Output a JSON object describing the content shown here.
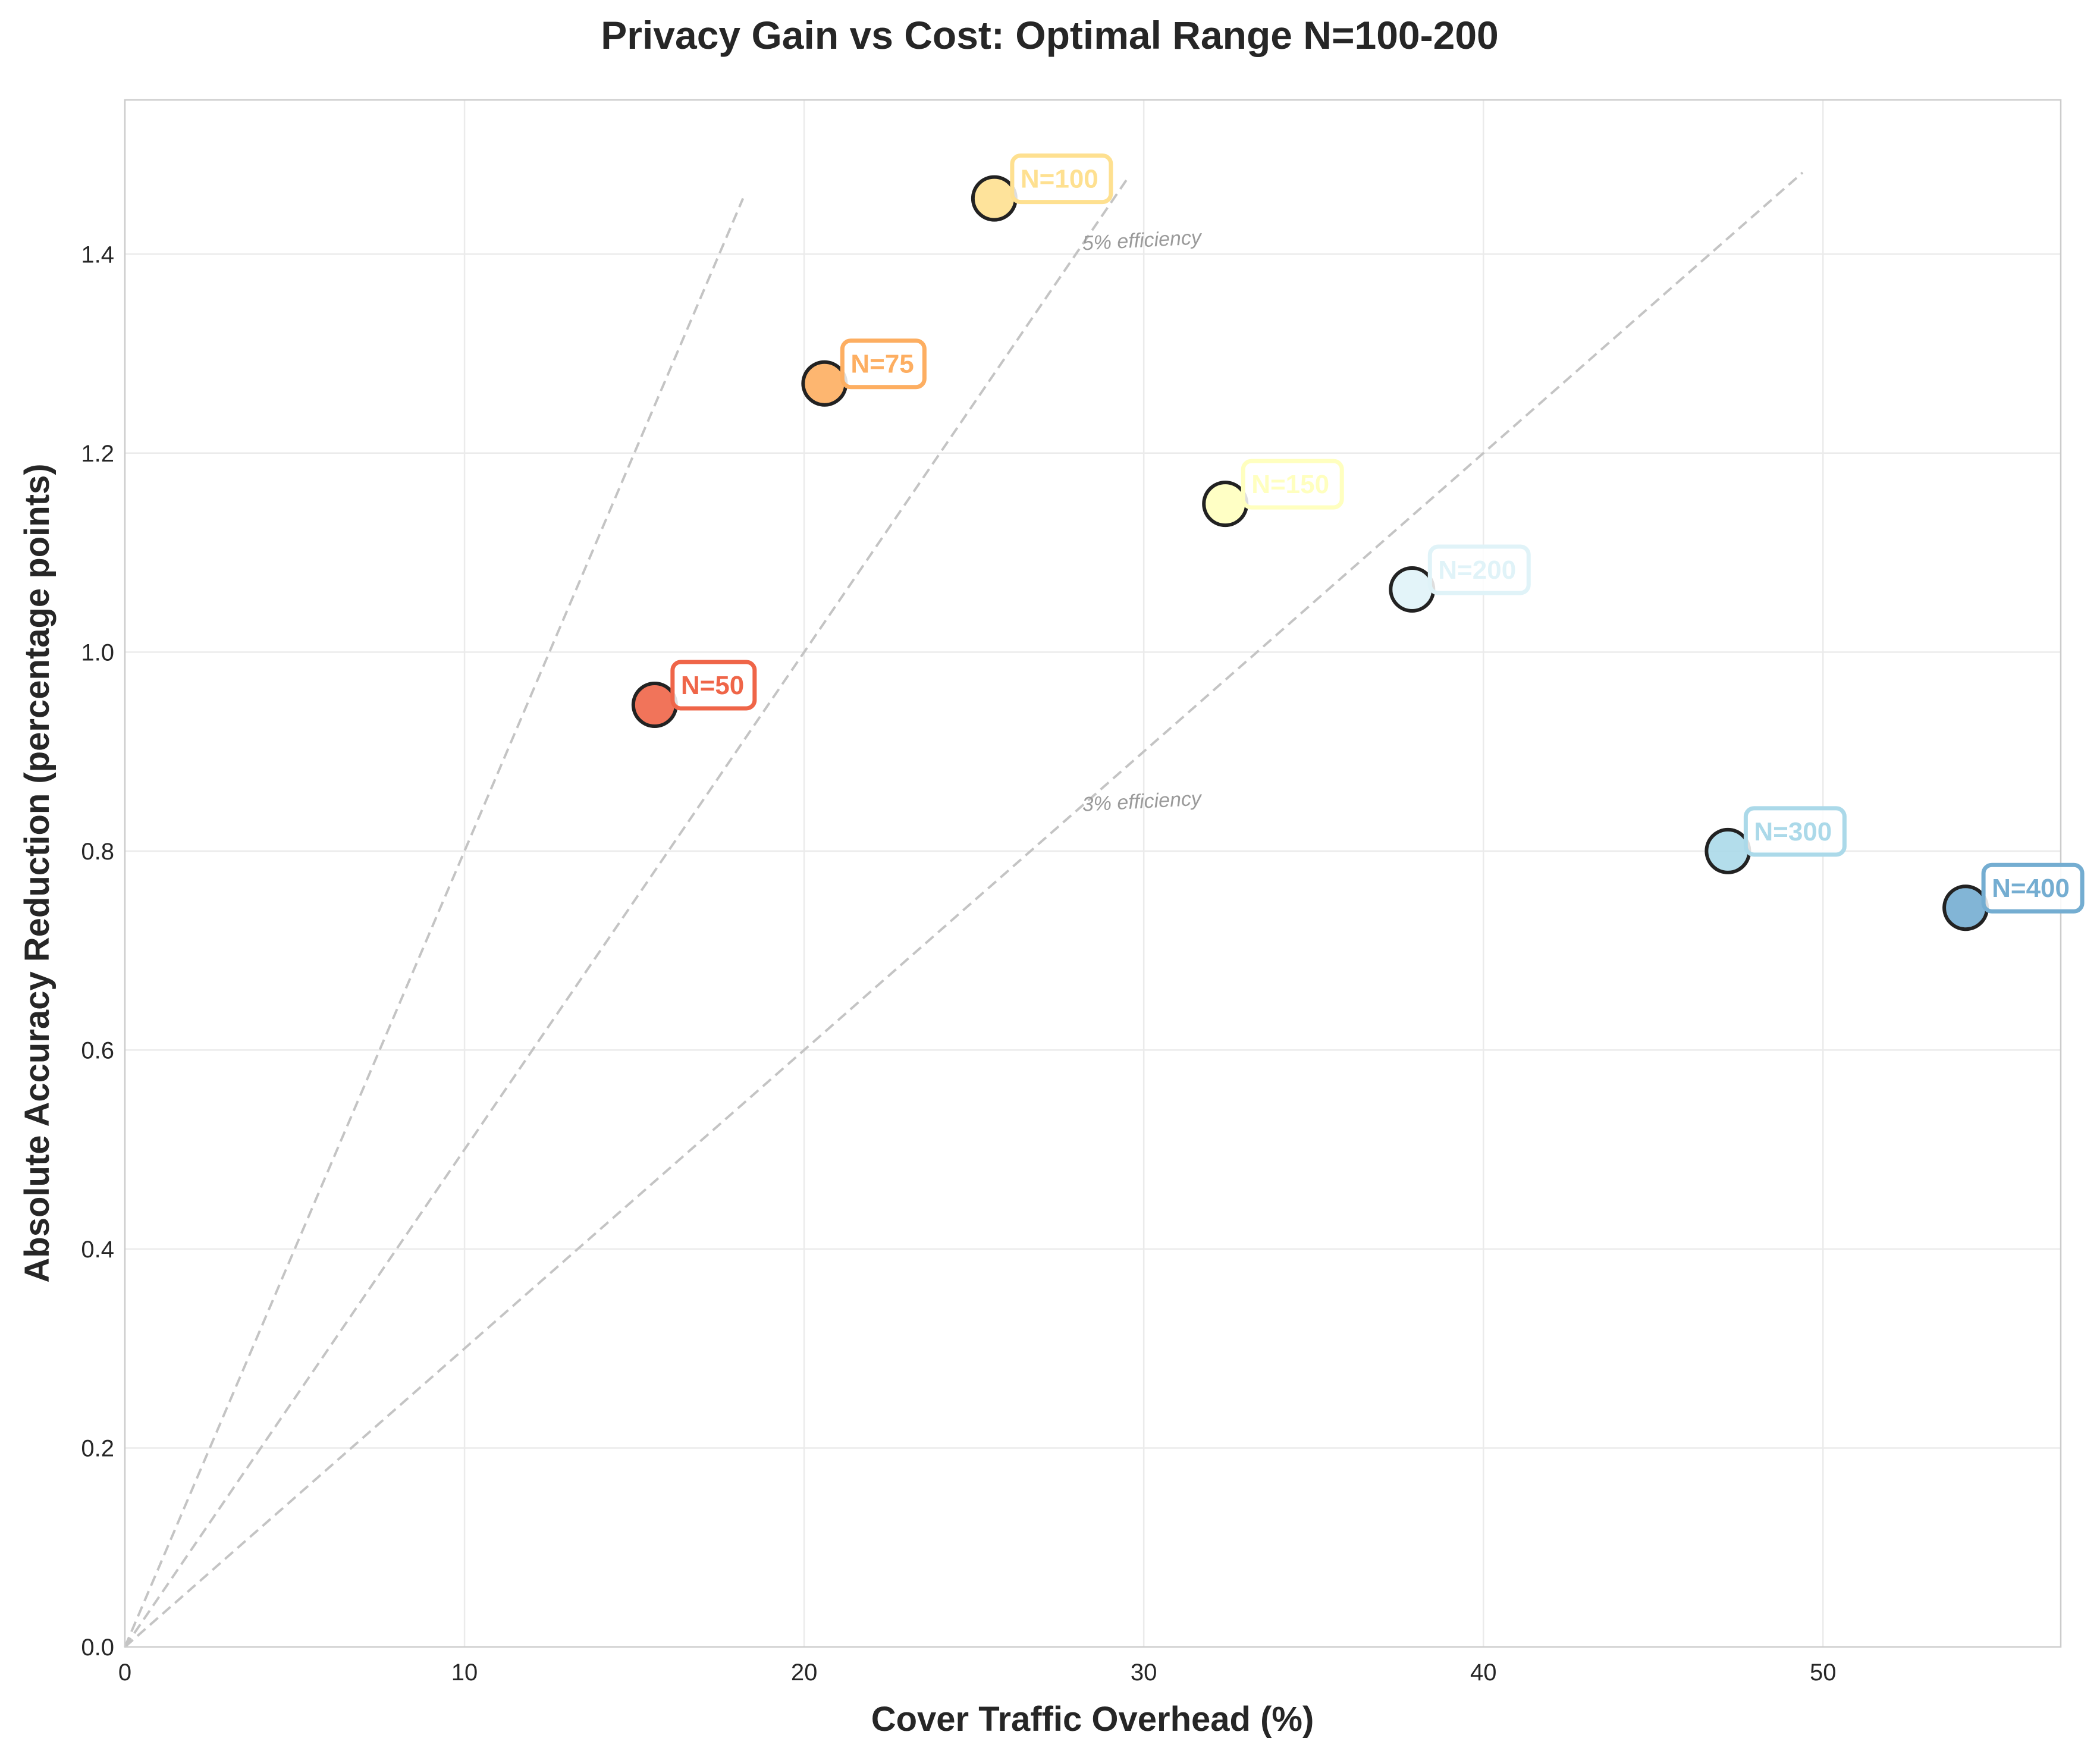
{
  "chart_data": {
    "type": "scatter",
    "title": "Privacy Gain vs Cost: Optimal Range N=100-200",
    "xlabel": "Cover Traffic Overhead (%)",
    "ylabel": "Absolute Accuracy Reduction (percentage points)",
    "xlim": [
      0,
      57
    ],
    "ylim": [
      0,
      1.555
    ],
    "xticks": [
      0,
      10,
      20,
      30,
      40,
      50
    ],
    "yticks": [
      0.0,
      0.2,
      0.4,
      0.6,
      0.8,
      1.0,
      1.2,
      1.4
    ],
    "grid": true,
    "points": [
      {
        "label": "N=50",
        "x": 15.6,
        "y": 0.947,
        "color": "#ef6548"
      },
      {
        "label": "N=75",
        "x": 20.6,
        "y": 1.27,
        "color": "#fdae61"
      },
      {
        "label": "N=100",
        "x": 25.6,
        "y": 1.456,
        "color": "#fee090"
      },
      {
        "label": "N=150",
        "x": 32.4,
        "y": 1.149,
        "color": "#ffffbf"
      },
      {
        "label": "N=200",
        "x": 37.9,
        "y": 1.063,
        "color": "#e0f3f8"
      },
      {
        "label": "N=300",
        "x": 47.2,
        "y": 0.8,
        "color": "#abd9e9"
      },
      {
        "label": "N=400",
        "x": 54.2,
        "y": 0.743,
        "color": "#74add1"
      }
    ],
    "reference_lines": [
      {
        "slope": 0.08,
        "x_end": 18.2,
        "label": ""
      },
      {
        "slope": 0.05,
        "x_end": 29.5,
        "label": "5% efficiency"
      },
      {
        "slope": 0.03,
        "x_end": 49.4,
        "label": "3% efficiency"
      }
    ]
  }
}
